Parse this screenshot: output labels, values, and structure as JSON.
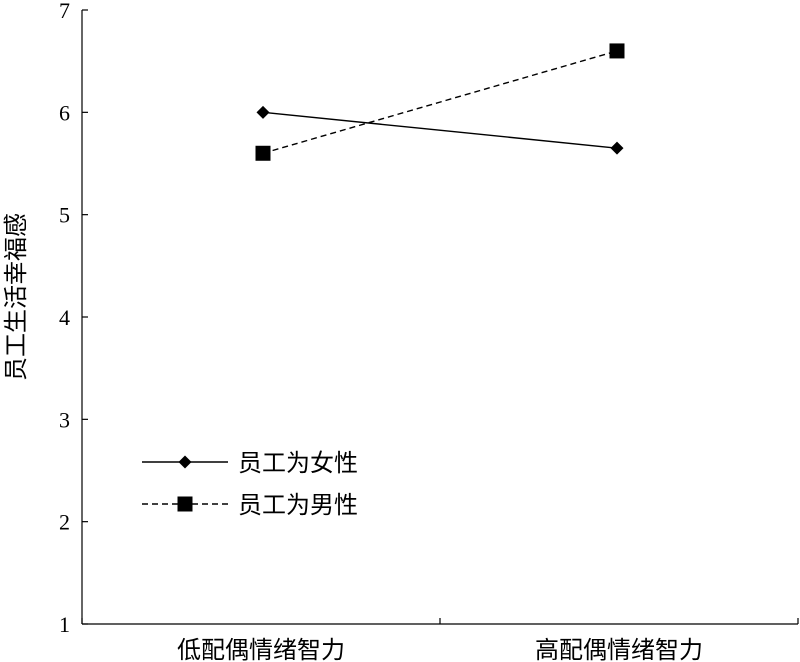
{
  "chart_data": {
    "type": "line",
    "title": "",
    "xlabel": "",
    "ylabel": "员工生活幸福感",
    "categories": [
      "低配偶情绪智力",
      "高配偶情绪智力"
    ],
    "ylim": [
      1,
      7
    ],
    "yticks": [
      1,
      2,
      3,
      4,
      5,
      6,
      7
    ],
    "grid": false,
    "legend_position": "lower-left",
    "series": [
      {
        "name": "员工为女性",
        "values": [
          6.0,
          5.65
        ],
        "marker": "diamond",
        "line": "solid",
        "color": "#000000"
      },
      {
        "name": "员工为男性",
        "values": [
          5.6,
          6.6
        ],
        "marker": "square",
        "line": "dashed",
        "color": "#000000"
      }
    ]
  }
}
